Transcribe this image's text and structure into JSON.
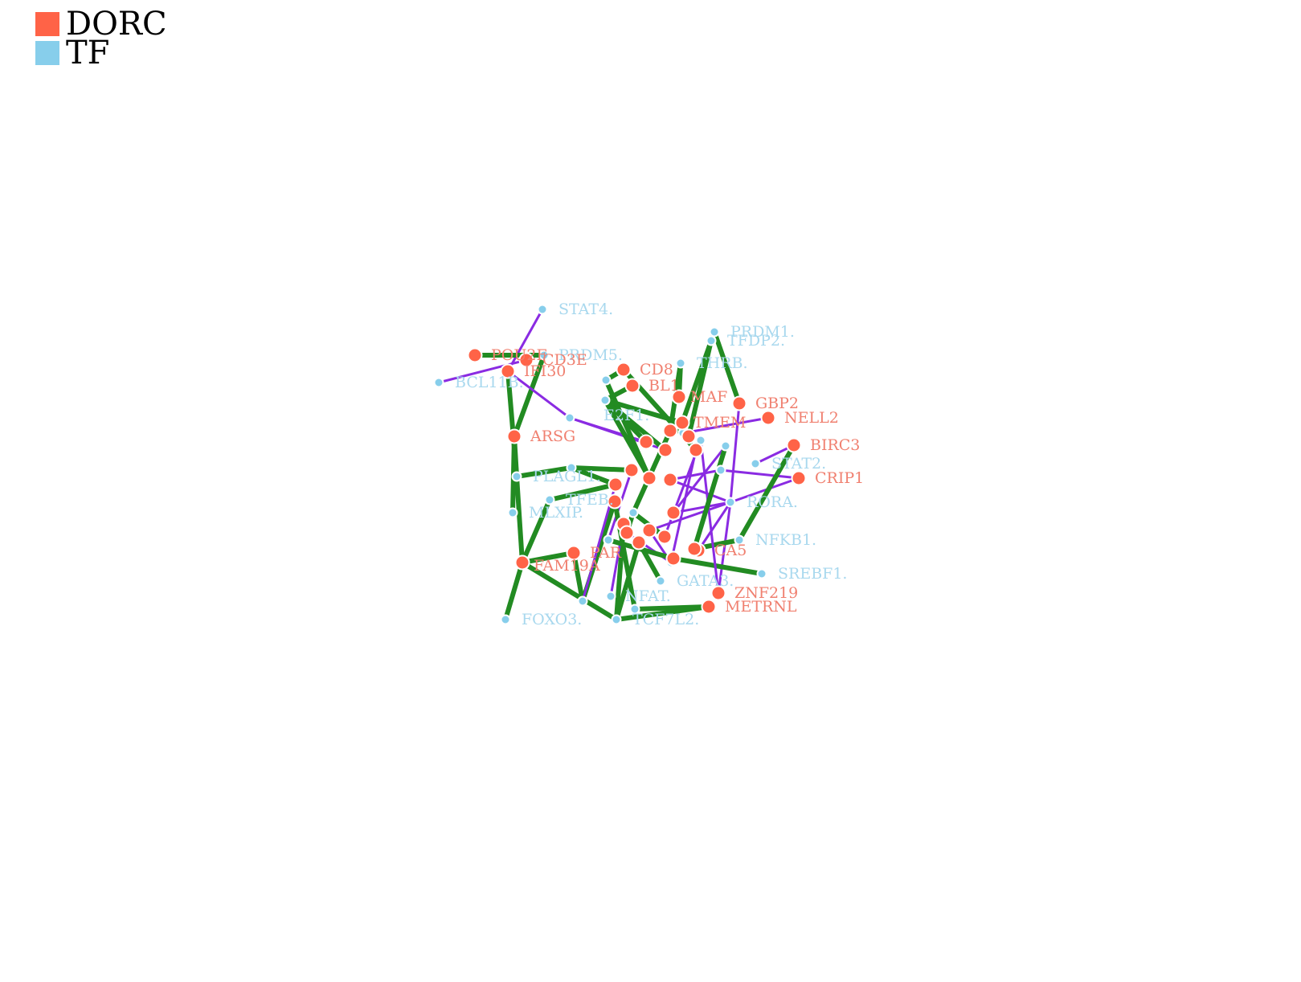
{
  "legend": [
    {
      "label": "DORC",
      "color": "#FF6347"
    },
    {
      "label": "TF",
      "color": "#87CEEB"
    }
  ],
  "colors": {
    "dorc": "#FF6347",
    "dorc_label": "#F08070",
    "tf": "#87CEEB",
    "tf_label": "#A8D8EE",
    "edge_positive": "#228B22",
    "edge_negative": "#8A2BE2"
  },
  "nodes": [
    {
      "id": "STAT4",
      "label": "STAT4.",
      "type": "TF"
    },
    {
      "id": "PRDM1",
      "label": "PRDM1.",
      "type": "TF"
    },
    {
      "id": "TFDP2",
      "label": "TFDP2.",
      "type": "TF"
    },
    {
      "id": "PRDM5",
      "label": "PRDM5.",
      "type": "TF"
    },
    {
      "id": "BCL11B",
      "label": "BCL11B.",
      "type": "TF"
    },
    {
      "id": "THRB",
      "label": "THRB.",
      "type": "TF"
    },
    {
      "id": "STAT2",
      "label": "STAT2.",
      "type": "TF"
    },
    {
      "id": "RORA",
      "label": "RORA.",
      "type": "TF"
    },
    {
      "id": "NFKB1",
      "label": "NFKB1.",
      "type": "TF"
    },
    {
      "id": "SREBF1",
      "label": "SREBF1.",
      "type": "TF"
    },
    {
      "id": "GATA3",
      "label": "GATA3.",
      "type": "TF"
    },
    {
      "id": "TCF7L2",
      "label": "TCF7L2.",
      "type": "TF"
    },
    {
      "id": "FOXO3",
      "label": "FOXO3.",
      "type": "TF"
    },
    {
      "id": "PLAGL1",
      "label": "PLAGL1.",
      "type": "TF"
    },
    {
      "id": "TFEB",
      "label": "TFEB.",
      "type": "TF"
    },
    {
      "id": "MLXIP",
      "label": "MLXIP.",
      "type": "TF"
    },
    {
      "id": "E2F1",
      "label": "E2F1.",
      "type": "TF"
    },
    {
      "id": "NFAT",
      "label": "NFAT.",
      "type": "TF"
    },
    {
      "id": "TF1",
      "label": "",
      "type": "TF"
    },
    {
      "id": "TF2",
      "label": "",
      "type": "TF"
    },
    {
      "id": "TF3",
      "label": "",
      "type": "TF"
    },
    {
      "id": "TF4",
      "label": "",
      "type": "TF"
    },
    {
      "id": "TF5",
      "label": "",
      "type": "TF"
    },
    {
      "id": "TF6",
      "label": "",
      "type": "TF"
    },
    {
      "id": "TF7",
      "label": "",
      "type": "TF"
    },
    {
      "id": "TF8",
      "label": "",
      "type": "TF"
    },
    {
      "id": "TF9",
      "label": "",
      "type": "TF"
    },
    {
      "id": "TF10",
      "label": "",
      "type": "TF"
    },
    {
      "id": "TF11",
      "label": "",
      "type": "TF"
    },
    {
      "id": "TF12",
      "label": "",
      "type": "TF"
    },
    {
      "id": "POU2F",
      "label": "POU2F",
      "type": "DORC"
    },
    {
      "id": "CD3E",
      "label": "CD3E",
      "type": "DORC"
    },
    {
      "id": "IFI30",
      "label": "IFI30",
      "type": "DORC"
    },
    {
      "id": "CD8",
      "label": "CD8",
      "type": "DORC"
    },
    {
      "id": "ARSG",
      "label": "ARSG",
      "type": "DORC"
    },
    {
      "id": "BL1",
      "label": "BL1",
      "type": "DORC"
    },
    {
      "id": "MAF",
      "label": "MAF",
      "type": "DORC"
    },
    {
      "id": "GBP2",
      "label": "GBP2",
      "type": "DORC"
    },
    {
      "id": "NELL2",
      "label": "NELL2",
      "type": "DORC"
    },
    {
      "id": "BIRC3",
      "label": "BIRC3",
      "type": "DORC"
    },
    {
      "id": "CRIP1",
      "label": "CRIP1",
      "type": "DORC"
    },
    {
      "id": "TMEM",
      "label": "TMEM",
      "type": "DORC"
    },
    {
      "id": "CA5",
      "label": "CA5",
      "type": "DORC"
    },
    {
      "id": "ZNF219",
      "label": "ZNF219",
      "type": "DORC"
    },
    {
      "id": "METRNL",
      "label": "METRNL",
      "type": "DORC"
    },
    {
      "id": "FAM19A",
      "label": "FAM19A",
      "type": "DORC"
    },
    {
      "id": "PAR",
      "label": "PAR",
      "type": "DORC"
    },
    {
      "id": "D1",
      "label": "",
      "type": "DORC"
    },
    {
      "id": "D2",
      "label": "",
      "type": "DORC"
    },
    {
      "id": "D3",
      "label": "",
      "type": "DORC"
    },
    {
      "id": "D4",
      "label": "",
      "type": "DORC"
    },
    {
      "id": "D5",
      "label": "",
      "type": "DORC"
    },
    {
      "id": "D6",
      "label": "",
      "type": "DORC"
    },
    {
      "id": "D7",
      "label": "",
      "type": "DORC"
    },
    {
      "id": "D8",
      "label": "",
      "type": "DORC"
    },
    {
      "id": "D9",
      "label": "",
      "type": "DORC"
    },
    {
      "id": "D10",
      "label": "",
      "type": "DORC"
    },
    {
      "id": "D11",
      "label": "",
      "type": "DORC"
    },
    {
      "id": "D12",
      "label": "",
      "type": "DORC"
    },
    {
      "id": "D13",
      "label": "",
      "type": "DORC"
    },
    {
      "id": "D14",
      "label": "",
      "type": "DORC"
    },
    {
      "id": "D15",
      "label": "",
      "type": "DORC"
    },
    {
      "id": "D16",
      "label": "",
      "type": "DORC"
    },
    {
      "id": "D17",
      "label": "",
      "type": "DORC"
    },
    {
      "id": "D18",
      "label": "",
      "type": "DORC"
    }
  ],
  "edges": [
    {
      "source": "STAT4",
      "target": "IFI30",
      "sign": "negative"
    },
    {
      "source": "BCL11B",
      "target": "CD3E",
      "sign": "negative"
    },
    {
      "source": "PRDM5",
      "target": "POU2F",
      "sign": "positive"
    },
    {
      "source": "PRDM5",
      "target": "ARSG",
      "sign": "positive"
    },
    {
      "source": "IFI30",
      "target": "PLAGL1",
      "sign": "positive"
    },
    {
      "source": "ARSG",
      "target": "PLAGL1",
      "sign": "positive"
    },
    {
      "source": "PLAGL1",
      "target": "FAM19A",
      "sign": "positive"
    },
    {
      "source": "PLAGL1",
      "target": "TF6",
      "sign": "positive"
    },
    {
      "source": "MLXIP",
      "target": "ARSG",
      "sign": "positive"
    },
    {
      "source": "FOXO3",
      "target": "FAM19A",
      "sign": "positive"
    },
    {
      "source": "FAM19A",
      "target": "TCF7L2",
      "sign": "positive"
    },
    {
      "source": "FAM19A",
      "target": "PAR",
      "sign": "positive"
    },
    {
      "source": "PAR",
      "target": "TF7",
      "sign": "positive"
    },
    {
      "source": "TFEB",
      "target": "D6",
      "sign": "positive"
    },
    {
      "source": "TFEB",
      "target": "FAM19A",
      "sign": "positive"
    },
    {
      "source": "IFI30",
      "target": "TF1",
      "sign": "negative"
    },
    {
      "source": "TF1",
      "target": "D1",
      "sign": "negative"
    },
    {
      "source": "TF1",
      "target": "D2",
      "sign": "negative"
    },
    {
      "source": "CD8",
      "target": "TF2",
      "sign": "positive"
    },
    {
      "source": "CD8",
      "target": "D3",
      "sign": "positive"
    },
    {
      "source": "BL1",
      "target": "E2F1",
      "sign": "positive"
    },
    {
      "source": "THRB",
      "target": "MAF",
      "sign": "positive"
    },
    {
      "source": "THRB",
      "target": "D4",
      "sign": "positive"
    },
    {
      "source": "PRDM1",
      "target": "GBP2",
      "sign": "positive"
    },
    {
      "source": "PRDM1",
      "target": "TMEM",
      "sign": "positive"
    },
    {
      "source": "TFDP2",
      "target": "D5",
      "sign": "positive"
    },
    {
      "source": "GBP2",
      "target": "RORA",
      "sign": "negative"
    },
    {
      "source": "NELL2",
      "target": "TF8",
      "sign": "negative"
    },
    {
      "source": "BIRC3",
      "target": "STAT2",
      "sign": "negative"
    },
    {
      "source": "CRIP1",
      "target": "RORA",
      "sign": "negative"
    },
    {
      "source": "CRIP1",
      "target": "TF3",
      "sign": "negative"
    },
    {
      "source": "RORA",
      "target": "D7",
      "sign": "negative"
    },
    {
      "source": "RORA",
      "target": "D8",
      "sign": "negative"
    },
    {
      "source": "RORA",
      "target": "D9",
      "sign": "negative"
    },
    {
      "source": "RORA",
      "target": "CA5",
      "sign": "negative"
    },
    {
      "source": "RORA",
      "target": "ZNF219",
      "sign": "negative"
    },
    {
      "source": "BIRC3",
      "target": "NFKB1",
      "sign": "positive"
    },
    {
      "source": "NFKB1",
      "target": "D10",
      "sign": "positive"
    },
    {
      "source": "SREBF1",
      "target": "D11",
      "sign": "positive"
    },
    {
      "source": "ZNF219",
      "target": "TF4",
      "sign": "negative"
    },
    {
      "source": "METRNL",
      "target": "TCF7L2",
      "sign": "positive"
    },
    {
      "source": "METRNL",
      "target": "TF9",
      "sign": "positive"
    },
    {
      "source": "TCF7L2",
      "target": "D12",
      "sign": "positive"
    },
    {
      "source": "TCF7L2",
      "target": "D13",
      "sign": "positive"
    },
    {
      "source": "TF7",
      "target": "D14",
      "sign": "positive"
    },
    {
      "source": "TF7",
      "target": "D6",
      "sign": "negative"
    },
    {
      "source": "TF10",
      "target": "D15",
      "sign": "negative"
    },
    {
      "source": "E2F1",
      "target": "D2",
      "sign": "positive"
    },
    {
      "source": "E2F1",
      "target": "D16",
      "sign": "positive"
    },
    {
      "source": "E2F1",
      "target": "D1",
      "sign": "positive"
    },
    {
      "source": "E2F1",
      "target": "TMEM",
      "sign": "positive"
    },
    {
      "source": "TF11",
      "target": "D17",
      "sign": "positive"
    },
    {
      "source": "TF11",
      "target": "D18",
      "sign": "positive"
    },
    {
      "source": "TF12",
      "target": "D3",
      "sign": "negative"
    },
    {
      "source": "TF12",
      "target": "D9",
      "sign": "negative"
    },
    {
      "source": "TF2",
      "target": "D16",
      "sign": "positive"
    },
    {
      "source": "TF5",
      "target": "D8",
      "sign": "negative"
    },
    {
      "source": "TF5",
      "target": "D10",
      "sign": "positive"
    },
    {
      "source": "GATA3",
      "target": "D13",
      "sign": "positive"
    },
    {
      "source": "NFAT",
      "target": "D12",
      "sign": "negative"
    },
    {
      "source": "TF9",
      "target": "D14",
      "sign": "positive"
    },
    {
      "source": "TF6",
      "target": "D15",
      "sign": "positive"
    },
    {
      "source": "TF6",
      "target": "D6",
      "sign": "positive"
    },
    {
      "source": "TF3",
      "target": "D7",
      "sign": "negative"
    },
    {
      "source": "TF8",
      "target": "D5",
      "sign": "negative"
    },
    {
      "source": "D4",
      "target": "TF11",
      "sign": "positive"
    },
    {
      "source": "D18",
      "target": "TF12",
      "sign": "negative"
    },
    {
      "source": "TF4",
      "target": "D17",
      "sign": "negative"
    },
    {
      "source": "TF10",
      "target": "D11",
      "sign": "positive"
    }
  ]
}
